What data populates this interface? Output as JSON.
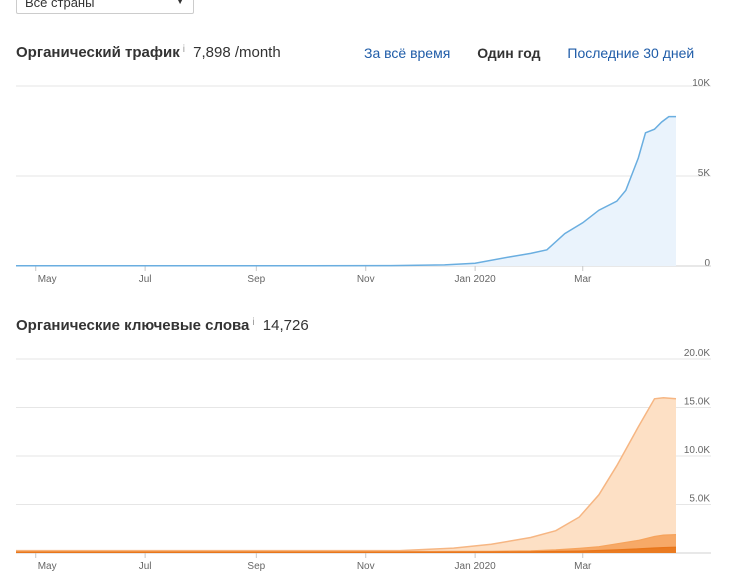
{
  "country_select": {
    "value": "Все страны"
  },
  "traffic": {
    "title": "Органический трафик",
    "info": "i",
    "value": "7,898 /month",
    "range_tabs": [
      {
        "label": "За всё время",
        "active": false
      },
      {
        "label": "Один год",
        "active": true
      },
      {
        "label": "Последние 30 дней",
        "active": false
      }
    ]
  },
  "keywords": {
    "title": "Органические ключевые слова",
    "info": "i",
    "value": "14,726"
  },
  "colors": {
    "traffic_line": "#6aaee0",
    "traffic_fill": "#eaf3fc",
    "kw_light": "#fde0c5",
    "kw_light_line": "#f6b683",
    "kw_mid": "#f6a35c",
    "kw_dark": "#e8751a",
    "grid": "#e6e6e6",
    "axis_text": "#666666"
  },
  "chart_data": [
    {
      "type": "area",
      "title": "Органический трафик",
      "x_tick_labels": [
        "May",
        "Jul",
        "Sep",
        "Nov",
        "Jan 2020",
        "Mar"
      ],
      "y_tick_labels": [
        "0",
        "5K",
        "10K"
      ],
      "ylim": [
        0,
        10000
      ],
      "grid": true,
      "series": [
        {
          "x": [
            "2019-04-20",
            "2019-06-01",
            "2019-08-01",
            "2019-10-01",
            "2019-11-15",
            "2019-12-15",
            "2020-01-01",
            "2020-01-20",
            "2020-02-01",
            "2020-02-10",
            "2020-02-20",
            "2020-03-01",
            "2020-03-10",
            "2020-03-20",
            "2020-03-25",
            "2020-04-01",
            "2020-04-05",
            "2020-04-10",
            "2020-04-14",
            "2020-04-18",
            "2020-04-22"
          ],
          "values": [
            10,
            10,
            10,
            10,
            20,
            60,
            150,
            500,
            700,
            900,
            1800,
            2400,
            3100,
            3600,
            4200,
            6000,
            7400,
            7600,
            8000,
            8300,
            8300
          ]
        }
      ]
    },
    {
      "type": "area",
      "title": "Органические ключевые слова",
      "x_tick_labels": [
        "May",
        "Jul",
        "Sep",
        "Nov",
        "Jan 2020",
        "Mar"
      ],
      "y_tick_labels": [
        "5.0K",
        "10.0K",
        "15.0K",
        "20.0K"
      ],
      "ylim": [
        0,
        20000
      ],
      "grid": true,
      "x": [
        "2019-04-20",
        "2019-07-01",
        "2019-10-01",
        "2019-11-20",
        "2019-12-20",
        "2020-01-10",
        "2020-02-01",
        "2020-02-15",
        "2020-02-28",
        "2020-03-10",
        "2020-03-20",
        "2020-04-01",
        "2020-04-10",
        "2020-04-15",
        "2020-04-22"
      ],
      "series": [
        {
          "values": [
            250,
            250,
            250,
            250,
            500,
            900,
            1600,
            2300,
            3700,
            6000,
            9000,
            13000,
            15900,
            16000,
            15900
          ]
        },
        {
          "values": [
            150,
            150,
            150,
            150,
            160,
            180,
            220,
            320,
            480,
            650,
            950,
            1300,
            1700,
            1850,
            1900
          ]
        },
        {
          "values": [
            80,
            80,
            80,
            80,
            90,
            100,
            120,
            160,
            200,
            260,
            330,
            420,
            520,
            560,
            600
          ]
        }
      ]
    }
  ]
}
